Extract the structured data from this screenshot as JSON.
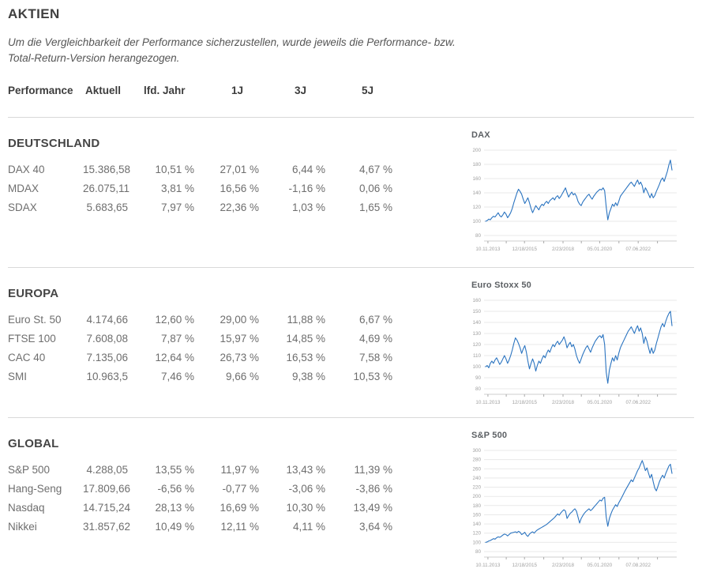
{
  "page": {
    "title": "AKTIEN",
    "subtitle": "Um die Vergleichbarkeit der Performance sicherzustellen, wurde jeweils die Performance- bzw. Total-Return-Version herangezogen."
  },
  "table": {
    "headers": [
      "Performance",
      "Aktuell",
      "lfd. Jahr",
      "1J",
      "3J",
      "5J"
    ]
  },
  "sections": [
    {
      "title": "DEUTSCHLAND",
      "rows": [
        {
          "label": "DAX 40",
          "aktuell": "15.386,58",
          "lfd_jahr": "10,51 %",
          "j1": "27,01 %",
          "j3": "6,44 %",
          "j5": "4,67 %"
        },
        {
          "label": "MDAX",
          "aktuell": "26.075,11",
          "lfd_jahr": "3,81 %",
          "j1": "16,56 %",
          "j3": "-1,16 %",
          "j5": "0,06 %"
        },
        {
          "label": "SDAX",
          "aktuell": "5.683,65",
          "lfd_jahr": "7,97 %",
          "j1": "22,36 %",
          "j3": "1,03 %",
          "j5": "1,65 %"
        }
      ]
    },
    {
      "title": "EUROPA",
      "rows": [
        {
          "label": "Euro St. 50",
          "aktuell": "4.174,66",
          "lfd_jahr": "12,60 %",
          "j1": "29,00 %",
          "j3": "11,88 %",
          "j5": "6,67 %"
        },
        {
          "label": "FTSE 100",
          "aktuell": "7.608,08",
          "lfd_jahr": "7,87 %",
          "j1": "15,97 %",
          "j3": "14,85 %",
          "j5": "4,69 %"
        },
        {
          "label": "CAC 40",
          "aktuell": "7.135,06",
          "lfd_jahr": "12,64 %",
          "j1": "26,73 %",
          "j3": "16,53 %",
          "j5": "7,58 %"
        },
        {
          "label": "SMI",
          "aktuell": "10.963,5",
          "lfd_jahr": "7,46 %",
          "j1": "9,66 %",
          "j3": "9,38 %",
          "j5": "10,53 %"
        }
      ]
    },
    {
      "title": "GLOBAL",
      "rows": [
        {
          "label": "S&P 500",
          "aktuell": "4.288,05",
          "lfd_jahr": "13,55 %",
          "j1": "11,97 %",
          "j3": "13,43 %",
          "j5": "11,39 %"
        },
        {
          "label": "Hang-Seng",
          "aktuell": "17.809,66",
          "lfd_jahr": "-6,56 %",
          "j1": "-0,77 %",
          "j3": "-3,06 %",
          "j5": "-3,86 %"
        },
        {
          "label": "Nasdaq",
          "aktuell": "14.715,24",
          "lfd_jahr": "28,13 %",
          "j1": "16,69 %",
          "j3": "10,30 %",
          "j5": "13,49 %"
        },
        {
          "label": "Nikkei",
          "aktuell": "31.857,62",
          "lfd_jahr": "10,49 %",
          "j1": "12,11 %",
          "j3": "4,11 %",
          "j5": "3,64 %"
        }
      ]
    }
  ],
  "chart_data": [
    {
      "type": "line",
      "title": "DAX",
      "ylim": [
        80,
        200
      ],
      "ytick_step": 20,
      "grid": true,
      "legend": false,
      "x_axis_labels": [
        "10.11.2013",
        "12/18/2015",
        "2/23/2018",
        "05.01.2020",
        "07.06.2022"
      ],
      "values": [
        100,
        101,
        103,
        102,
        105,
        107,
        106,
        109,
        112,
        108,
        106,
        109,
        113,
        110,
        105,
        108,
        112,
        118,
        126,
        133,
        140,
        145,
        142,
        138,
        131,
        125,
        129,
        133,
        126,
        118,
        112,
        117,
        122,
        119,
        116,
        121,
        124,
        122,
        126,
        128,
        125,
        129,
        131,
        133,
        130,
        134,
        136,
        132,
        135,
        139,
        143,
        147,
        140,
        134,
        138,
        141,
        137,
        139,
        135,
        128,
        124,
        122,
        127,
        130,
        133,
        136,
        138,
        134,
        131,
        135,
        138,
        141,
        143,
        145,
        144,
        147,
        143,
        120,
        102,
        112,
        118,
        124,
        121,
        126,
        122,
        128,
        135,
        138,
        141,
        144,
        147,
        150,
        153,
        155,
        152,
        149,
        154,
        158,
        152,
        155,
        150,
        140,
        147,
        143,
        138,
        133,
        139,
        133,
        136,
        142,
        147,
        152,
        158,
        161,
        156,
        163,
        170,
        179,
        186,
        172
      ]
    },
    {
      "type": "line",
      "title": "Euro Stoxx 50",
      "ylim": [
        80,
        160
      ],
      "ytick_step": 10,
      "grid": true,
      "legend": false,
      "x_axis_labels": [
        "10.11.2013",
        "12/18/2015",
        "2/23/2018",
        "05.01.2020",
        "07.06.2022"
      ],
      "values": [
        100,
        101,
        99,
        103,
        105,
        103,
        106,
        108,
        105,
        102,
        104,
        107,
        110,
        107,
        103,
        106,
        110,
        115,
        121,
        126,
        124,
        121,
        117,
        112,
        116,
        119,
        113,
        105,
        98,
        103,
        107,
        103,
        96,
        101,
        105,
        103,
        107,
        110,
        108,
        112,
        115,
        113,
        117,
        120,
        118,
        121,
        123,
        120,
        122,
        124,
        127,
        123,
        117,
        120,
        122,
        118,
        120,
        116,
        110,
        106,
        103,
        107,
        111,
        114,
        117,
        119,
        116,
        113,
        117,
        120,
        123,
        125,
        127,
        128,
        126,
        129,
        120,
        95,
        85,
        97,
        103,
        108,
        105,
        110,
        106,
        112,
        117,
        120,
        123,
        126,
        129,
        132,
        134,
        136,
        133,
        130,
        134,
        137,
        132,
        135,
        130,
        121,
        127,
        123,
        117,
        112,
        117,
        112,
        115,
        121,
        126,
        131,
        136,
        139,
        136,
        141,
        145,
        148,
        150,
        137
      ]
    },
    {
      "type": "line",
      "title": "S&P 500",
      "ylim": [
        80,
        300
      ],
      "ytick_step": 20,
      "grid": true,
      "legend": false,
      "x_axis_labels": [
        "10.11.2013",
        "12/18/2015",
        "2/23/2018",
        "05.01.2020",
        "07.08.2022"
      ],
      "values": [
        100,
        101,
        103,
        104,
        106,
        108,
        107,
        110,
        112,
        111,
        113,
        116,
        118,
        117,
        114,
        117,
        120,
        121,
        122,
        123,
        121,
        124,
        122,
        117,
        119,
        122,
        116,
        113,
        118,
        121,
        123,
        120,
        124,
        127,
        129,
        131,
        133,
        135,
        137,
        139,
        142,
        145,
        148,
        151,
        154,
        158,
        162,
        159,
        164,
        168,
        171,
        168,
        152,
        158,
        163,
        166,
        170,
        173,
        168,
        155,
        142,
        152,
        158,
        163,
        167,
        170,
        173,
        169,
        172,
        176,
        180,
        184,
        188,
        192,
        190,
        196,
        198,
        155,
        135,
        152,
        162,
        170,
        176,
        182,
        178,
        186,
        192,
        198,
        205,
        212,
        218,
        224,
        230,
        236,
        232,
        240,
        248,
        256,
        262,
        270,
        278,
        268,
        256,
        262,
        250,
        240,
        248,
        232,
        218,
        212,
        222,
        232,
        240,
        246,
        240,
        250,
        258,
        266,
        270,
        250
      ]
    }
  ],
  "colors": {
    "line": "#2b74c0",
    "grid": "#e9e9e9",
    "axis_line": "#cfcfcf",
    "tick": "#a9a9a9",
    "axis_label": "#a0a0a0",
    "divider": "#d9d9d9",
    "heading_text": "#3f3f3f",
    "row_text": "#6e6e6e"
  }
}
